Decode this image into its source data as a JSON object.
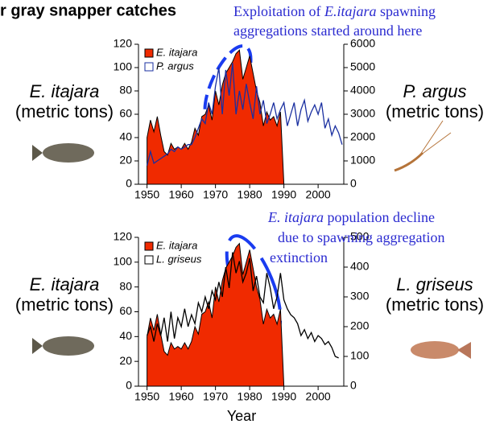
{
  "page_title": "r gray snapper catches",
  "chart_data": [
    {
      "type": "line",
      "annotation": [
        [
          {
            "text": "Exploitation of ",
            "italic": false
          },
          {
            "text": "E.itajara",
            "italic": true
          },
          {
            "text": " spawning",
            "italic": false
          }
        ],
        [
          {
            "text": "aggregations started around here",
            "italic": false
          }
        ]
      ],
      "ylabel": [
        "E. itajara",
        "(metric tons)"
      ],
      "y2label": [
        "P. argus",
        "(metric tons)"
      ],
      "xlim": [
        1947.5,
        2007.5
      ],
      "xticks": [
        1950,
        1960,
        1970,
        1980,
        1990,
        2000
      ],
      "ylim": [
        0,
        120
      ],
      "yticks": [
        0,
        20,
        40,
        60,
        80,
        100,
        120
      ],
      "y2lim": [
        0,
        6000
      ],
      "y2ticks": [
        0,
        1000,
        2000,
        3000,
        4000,
        5000,
        6000
      ],
      "series": [
        {
          "name": "E. itajara",
          "style": "area",
          "color": "#f02a00",
          "x": [
            1950,
            1951,
            1952,
            1953,
            1954,
            1955,
            1956,
            1957,
            1958,
            1959,
            1960,
            1961,
            1962,
            1963,
            1964,
            1965,
            1966,
            1967,
            1968,
            1969,
            1970,
            1971,
            1972,
            1973,
            1974,
            1975,
            1976,
            1977,
            1978,
            1979,
            1980,
            1981,
            1982,
            1983,
            1984,
            1985,
            1986,
            1987,
            1988,
            1989,
            1990
          ],
          "values": [
            40,
            55,
            45,
            58,
            42,
            28,
            25,
            35,
            30,
            32,
            30,
            35,
            30,
            36,
            48,
            42,
            58,
            60,
            68,
            55,
            80,
            68,
            85,
            95,
            100,
            105,
            112,
            115,
            90,
            100,
            110,
            95,
            80,
            70,
            50,
            62,
            55,
            58,
            50,
            62,
            0
          ]
        },
        {
          "name": "P. argus",
          "style": "line",
          "axis": "y2",
          "color": "#1a2fa0",
          "x": [
            1950,
            1951,
            1952,
            1953,
            1954,
            1955,
            1956,
            1957,
            1958,
            1959,
            1960,
            1961,
            1962,
            1963,
            1964,
            1965,
            1966,
            1967,
            1968,
            1969,
            1970,
            1971,
            1972,
            1973,
            1974,
            1975,
            1976,
            1977,
            1978,
            1979,
            1980,
            1981,
            1982,
            1983,
            1984,
            1985,
            1986,
            1987,
            1988,
            1989,
            1990,
            1991,
            1992,
            1993,
            1994,
            1995,
            1996,
            1997,
            1998,
            1999,
            2000,
            2001,
            2002,
            2003,
            2004,
            2005,
            2006,
            2007
          ],
          "values": [
            800,
            1400,
            900,
            1000,
            1100,
            1200,
            1300,
            1500,
            1400,
            1600,
            1500,
            1600,
            1700,
            1700,
            2000,
            2400,
            2800,
            2600,
            3500,
            3000,
            4200,
            5000,
            3000,
            4900,
            3800,
            5200,
            3000,
            4000,
            3200,
            4300,
            3500,
            2800,
            4200,
            3000,
            3600,
            2600,
            3000,
            3500,
            2800,
            3200,
            3500,
            2500,
            3000,
            3500,
            2500,
            3200,
            3600,
            2700,
            3100,
            3400,
            3000,
            3500,
            2400,
            2800,
            2100,
            2500,
            2200,
            1700
          ]
        }
      ]
    },
    {
      "type": "line",
      "annotation": [
        [
          {
            "text": "E. itajara",
            "italic": true
          },
          {
            "text": " population decline",
            "italic": false
          }
        ],
        [
          {
            "text": "due to spawning aggregation",
            "italic": false
          }
        ],
        [
          {
            "text": "extinction",
            "italic": false
          }
        ]
      ],
      "ylabel": [
        "E. itajara",
        "(metric tons)"
      ],
      "y2label": [
        "L. griseus",
        "(metric tons)"
      ],
      "xlabel": "Year",
      "xlim": [
        1947.5,
        2007.5
      ],
      "xticks": [
        1950,
        1960,
        1970,
        1980,
        1990,
        2000
      ],
      "ylim": [
        0,
        120
      ],
      "yticks": [
        0,
        20,
        40,
        60,
        80,
        100,
        120
      ],
      "y2lim": [
        0,
        500
      ],
      "y2ticks": [
        0,
        100,
        200,
        300,
        400,
        500
      ],
      "series": [
        {
          "name": "E. itajara",
          "style": "area",
          "color": "#f02a00",
          "x": [
            1950,
            1951,
            1952,
            1953,
            1954,
            1955,
            1956,
            1957,
            1958,
            1959,
            1960,
            1961,
            1962,
            1963,
            1964,
            1965,
            1966,
            1967,
            1968,
            1969,
            1970,
            1971,
            1972,
            1973,
            1974,
            1975,
            1976,
            1977,
            1978,
            1979,
            1980,
            1981,
            1982,
            1983,
            1984,
            1985,
            1986,
            1987,
            1988,
            1989,
            1990
          ],
          "values": [
            40,
            55,
            45,
            58,
            42,
            28,
            25,
            35,
            30,
            32,
            30,
            35,
            30,
            36,
            48,
            42,
            58,
            60,
            68,
            55,
            80,
            68,
            85,
            95,
            100,
            105,
            112,
            115,
            90,
            100,
            110,
            95,
            80,
            70,
            50,
            62,
            55,
            58,
            50,
            62,
            0
          ]
        },
        {
          "name": "L. griseus",
          "style": "line",
          "axis": "y2",
          "color": "#000000",
          "x": [
            1950,
            1951,
            1952,
            1953,
            1954,
            1955,
            1956,
            1957,
            1958,
            1959,
            1960,
            1961,
            1962,
            1963,
            1964,
            1965,
            1966,
            1967,
            1968,
            1969,
            1970,
            1971,
            1972,
            1973,
            1974,
            1975,
            1976,
            1977,
            1978,
            1979,
            1980,
            1981,
            1982,
            1983,
            1984,
            1985,
            1986,
            1987,
            1988,
            1989,
            1990,
            1991,
            1992,
            1993,
            1994,
            1995,
            1996,
            1997,
            1998,
            1999,
            2000,
            2001,
            2002,
            2003,
            2004,
            2005,
            2006
          ],
          "values": [
            170,
            200,
            150,
            210,
            170,
            230,
            150,
            250,
            160,
            230,
            200,
            260,
            200,
            240,
            210,
            280,
            250,
            300,
            260,
            320,
            290,
            350,
            300,
            400,
            330,
            450,
            380,
            420,
            350,
            380,
            430,
            320,
            370,
            300,
            280,
            380,
            330,
            260,
            300,
            380,
            290,
            260,
            240,
            230,
            210,
            170,
            190,
            160,
            180,
            150,
            170,
            160,
            140,
            150,
            130,
            100,
            95
          ]
        }
      ]
    }
  ]
}
